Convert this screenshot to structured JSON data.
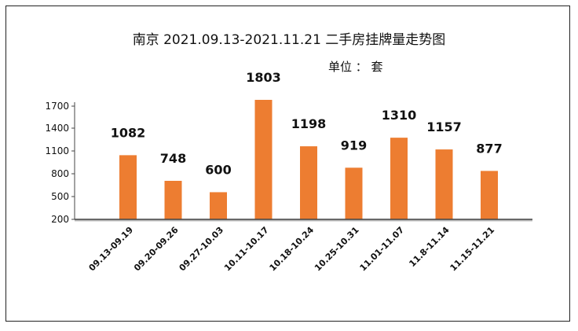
{
  "chart_data": {
    "type": "bar",
    "title": "南京 2021.09.13-2021.11.21 二手房挂牌量走势图",
    "unit_label": "单位 ： 套",
    "categories": [
      "09.13-09.19",
      "09.20-09.26",
      "09.27-10.03",
      "10.11-10.17",
      "10.18-10.24",
      "10.25-10.31",
      "11.01-11.07",
      "11.8-11.14",
      "11.15-11.21"
    ],
    "values": [
      1082,
      748,
      600,
      1803,
      1198,
      919,
      1310,
      1157,
      877
    ],
    "ytick_labels": [
      "200",
      "500",
      "800",
      "1100",
      "1400",
      "1700"
    ],
    "bar_color": "#ED7D31",
    "grid": false,
    "legend": "none"
  }
}
